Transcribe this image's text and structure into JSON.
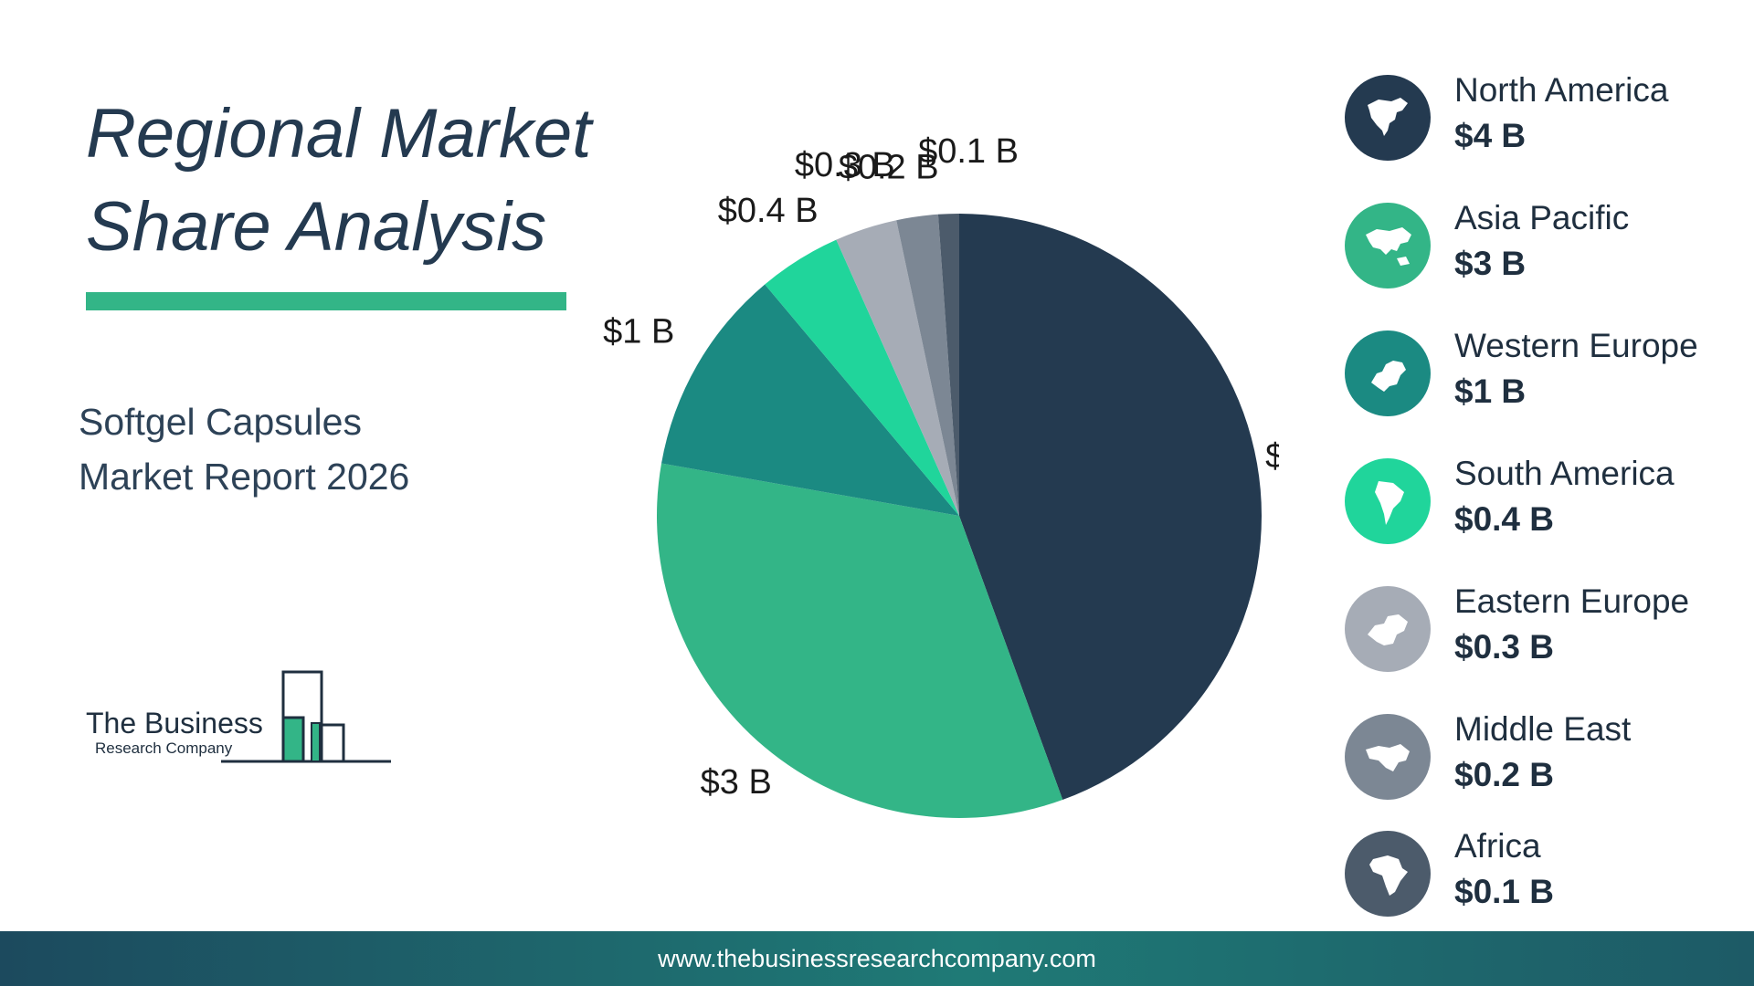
{
  "header": {
    "title_line1": "Regional Market",
    "title_line2": "Share Analysis",
    "subtitle_line1": "Softgel Capsules",
    "subtitle_line2": "Market Report 2026"
  },
  "logo": {
    "line1": "The Business",
    "line2": "Research Company"
  },
  "footer": {
    "url": "www.thebusinessresearchcompany.com"
  },
  "colors": {
    "title_bar": "#33b587",
    "north_america": "#243a50",
    "asia_pacific": "#33b587",
    "western_europe": "#1b8a82",
    "south_america": "#20d59b",
    "eastern_europe": "#a6acb6",
    "middle_east": "#7c8794",
    "africa": "#4c5b6b"
  },
  "chart_data": {
    "type": "pie",
    "title": "Regional Market Share Analysis",
    "unit": "B",
    "slices": [
      {
        "name": "North America",
        "value": 4,
        "label": "$4 B",
        "color": "#243a50",
        "icon": "north-america-map-icon"
      },
      {
        "name": "Asia Pacific",
        "value": 3,
        "label": "$3 B",
        "color": "#33b587",
        "icon": "asia-pacific-map-icon"
      },
      {
        "name": "Western Europe",
        "value": 1,
        "label": "$1 B",
        "color": "#1b8a82",
        "icon": "western-europe-map-icon"
      },
      {
        "name": "South America",
        "value": 0.4,
        "label": "$0.4 B",
        "color": "#20d59b",
        "icon": "south-america-map-icon"
      },
      {
        "name": "Eastern Europe",
        "value": 0.3,
        "label": "$0.3 B",
        "color": "#a6acb6",
        "icon": "eastern-europe-map-icon"
      },
      {
        "name": "Middle East",
        "value": 0.2,
        "label": "$0.2 B",
        "color": "#7c8794",
        "icon": "middle-east-map-icon"
      },
      {
        "name": "Africa",
        "value": 0.1,
        "label": "$0.1 B",
        "color": "#4c5b6b",
        "icon": "africa-map-icon"
      }
    ],
    "legend_position": "right"
  }
}
